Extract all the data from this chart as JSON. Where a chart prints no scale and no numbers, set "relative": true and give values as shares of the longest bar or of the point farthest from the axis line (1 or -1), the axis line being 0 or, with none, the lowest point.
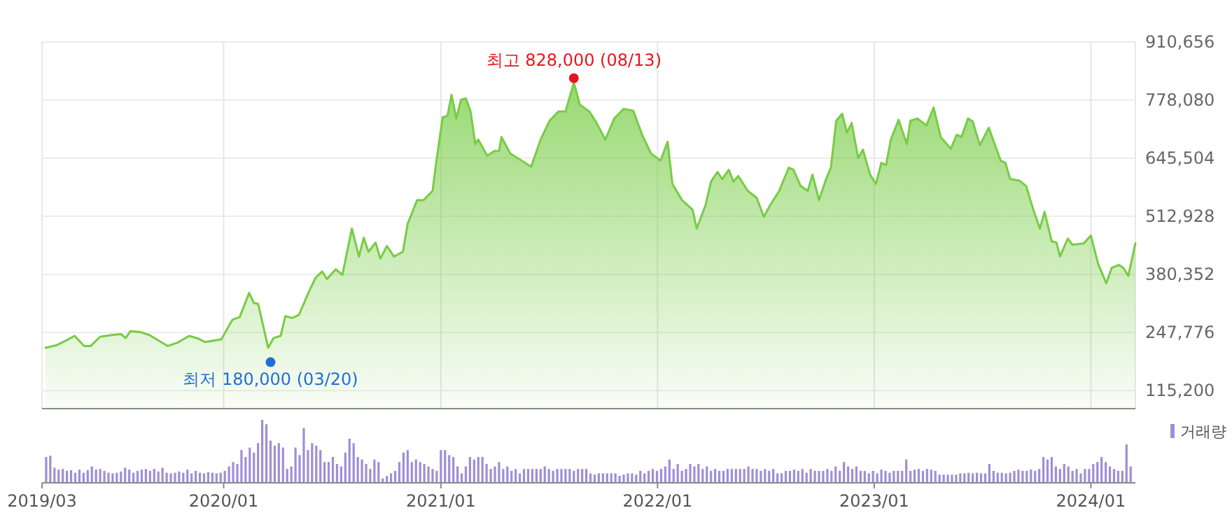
{
  "chart_data": [
    {
      "type": "area",
      "x": [
        "2019-03-07",
        "2019-03-26",
        "2019-04-10",
        "2019-04-25",
        "2019-05-11",
        "2019-05-22",
        "2019-06-07",
        "2019-06-27",
        "2019-07-12",
        "2019-07-20",
        "2019-07-28",
        "2019-08-13",
        "2019-08-29",
        "2019-09-14",
        "2019-09-29",
        "2019-10-16",
        "2019-11-04",
        "2019-11-19",
        "2019-12-01",
        "2019-12-28",
        "2020-01-16",
        "2020-01-28",
        "2020-02-13",
        "2020-02-21",
        "2020-02-28",
        "2020-03-02",
        "2020-03-16",
        "2020-03-25",
        "2020-04-06",
        "2020-04-14",
        "2020-04-26",
        "2020-05-07",
        "2020-05-22",
        "2020-06-04",
        "2020-06-15",
        "2020-06-23",
        "2020-07-08",
        "2020-07-19",
        "2020-08-04",
        "2020-08-16",
        "2020-08-24",
        "2020-09-01",
        "2020-09-13",
        "2020-09-21",
        "2020-10-02",
        "2020-10-14",
        "2020-10-29",
        "2020-11-06",
        "2020-11-22",
        "2020-12-03",
        "2020-12-18",
        "2020-12-24",
        "2021-01-04",
        "2021-01-12",
        "2021-01-19",
        "2021-01-27",
        "2021-02-04",
        "2021-02-12",
        "2021-02-20",
        "2021-02-28",
        "2021-03-05",
        "2021-03-20",
        "2021-04-01",
        "2021-04-09",
        "2021-04-13",
        "2021-04-28",
        "2021-05-17",
        "2021-06-02",
        "2021-06-18",
        "2021-07-03",
        "2021-07-18",
        "2021-07-30",
        "2021-08-13",
        "2021-08-23",
        "2021-09-08",
        "2021-09-19",
        "2021-10-05",
        "2021-10-20",
        "2021-11-05",
        "2021-11-21",
        "2021-12-06",
        "2021-12-21",
        "2022-01-06",
        "2022-01-18",
        "2022-01-26",
        "2022-02-11",
        "2022-03-01",
        "2022-03-08",
        "2022-03-23",
        "2022-04-01",
        "2022-04-12",
        "2022-04-20",
        "2022-05-01",
        "2022-05-09",
        "2022-05-17",
        "2022-06-02",
        "2022-06-17",
        "2022-06-29",
        "2022-07-10",
        "2022-07-25",
        "2022-08-10",
        "2022-08-18",
        "2022-08-30",
        "2022-09-11",
        "2022-09-19",
        "2022-09-30",
        "2022-10-12",
        "2022-10-20",
        "2022-10-29",
        "2022-11-08",
        "2022-11-16",
        "2022-11-24",
        "2022-12-05",
        "2022-12-13",
        "2022-12-25",
        "2023-01-04",
        "2023-01-13",
        "2023-01-21",
        "2023-01-29",
        "2023-02-11",
        "2023-02-25",
        "2023-03-03",
        "2023-03-15",
        "2023-03-30",
        "2023-04-11",
        "2023-04-23",
        "2023-05-10",
        "2023-05-20",
        "2023-05-28",
        "2023-06-08",
        "2023-06-16",
        "2023-06-28",
        "2023-07-13",
        "2023-08-02",
        "2023-08-10",
        "2023-08-18",
        "2023-09-03",
        "2023-09-14",
        "2023-09-26",
        "2023-10-07",
        "2023-10-15",
        "2023-10-27",
        "2023-11-04",
        "2023-11-10",
        "2023-11-23",
        "2023-12-01",
        "2023-12-20",
        "2024-01-01",
        "2024-01-13",
        "2024-01-27",
        "2024-02-05",
        "2024-02-17",
        "2024-02-25",
        "2024-03-04",
        "2024-03-16"
      ],
      "series": [
        {
          "color": "#77cc44",
          "values": [
            213000,
            219000,
            229000,
            240000,
            217000,
            217000,
            238000,
            242000,
            244000,
            235000,
            251000,
            249000,
            242000,
            229000,
            217000,
            225000,
            240000,
            234000,
            226000,
            232000,
            277000,
            283000,
            338000,
            315000,
            313000,
            296000,
            213000,
            235000,
            240000,
            285000,
            281000,
            288000,
            336000,
            373000,
            387000,
            370000,
            392000,
            379000,
            485000,
            421000,
            464000,
            432000,
            453000,
            416000,
            445000,
            421000,
            432000,
            496000,
            550000,
            550000,
            571000,
            635000,
            739000,
            742000,
            790000,
            736000,
            779000,
            782000,
            752000,
            678000,
            688000,
            651000,
            662000,
            662000,
            694000,
            656000,
            640000,
            626000,
            688000,
            731000,
            752000,
            752000,
            818000,
            768000,
            752000,
            729000,
            688000,
            736000,
            758000,
            754000,
            699000,
            656000,
            640000,
            683000,
            587000,
            550000,
            528000,
            485000,
            539000,
            592000,
            614000,
            598000,
            619000,
            592000,
            605000,
            571000,
            555000,
            512000,
            539000,
            571000,
            624000,
            619000,
            582000,
            571000,
            608000,
            550000,
            598000,
            624000,
            731000,
            747000,
            704000,
            726000,
            646000,
            665000,
            608000,
            587000,
            635000,
            630000,
            688000,
            733000,
            678000,
            731000,
            736000,
            720000,
            761000,
            694000,
            667000,
            699000,
            694000,
            736000,
            729000,
            675000,
            715000,
            640000,
            635000,
            598000,
            594000,
            582000,
            528000,
            485000,
            523000,
            456000,
            453000,
            421000,
            462000,
            448000,
            451000,
            469000,
            405000,
            360000,
            395000,
            402000,
            395000,
            377000,
            451000
          ]
        },
        {
          "type": "scatter",
          "x": [
            "2021-08-13",
            "2020-03-20"
          ],
          "colors": [
            "#e8141c",
            "#1f6fd6"
          ],
          "values": [
            828000,
            180000
          ]
        }
      ],
      "xlim": [
        "2019-03-01",
        "2024-03-16"
      ],
      "xticks": [
        {
          "value": "2020-01",
          "label": null
        },
        {
          "value": "2021-01",
          "label": null
        },
        {
          "value": "2022-01",
          "label": null
        },
        {
          "value": "2023-01",
          "label": null
        },
        {
          "value": "2024-01",
          "label": null
        }
      ],
      "ylim": [
        74000,
        910656
      ],
      "yticks": [
        {
          "value": 115200,
          "label": "115,200"
        },
        {
          "value": 247776,
          "label": "247,776"
        },
        {
          "value": 380352,
          "label": "380,352"
        },
        {
          "value": 512928,
          "label": "512,928"
        },
        {
          "value": 645504,
          "label": "645,504"
        },
        {
          "value": 778080,
          "label": "778,080"
        },
        {
          "value": 910656,
          "label": "910,656"
        }
      ],
      "grid": true,
      "tick_labels": "y",
      "annotations": [
        {
          "text": "최고 828,000 (08/13)",
          "x": "2021-08-13",
          "y": 828000
        },
        {
          "text": "최저 180,000 (03/20)",
          "x": "2020-03-20",
          "y": 180000
        }
      ]
    },
    {
      "type": "bar",
      "relative": true,
      "x": [
        "2019-03-08",
        "2019-03-15",
        "2019-03-22",
        "2019-03-29",
        "2019-04-05",
        "2019-04-12",
        "2019-04-19",
        "2019-04-26",
        "2019-05-03",
        "2019-05-10",
        "2019-05-17",
        "2019-05-24",
        "2019-05-31",
        "2019-06-07",
        "2019-06-14",
        "2019-06-21",
        "2019-06-28",
        "2019-07-05",
        "2019-07-12",
        "2019-07-19",
        "2019-07-26",
        "2019-08-02",
        "2019-08-09",
        "2019-08-16",
        "2019-08-23",
        "2019-08-30",
        "2019-09-06",
        "2019-09-13",
        "2019-09-20",
        "2019-09-27",
        "2019-10-04",
        "2019-10-11",
        "2019-10-18",
        "2019-10-25",
        "2019-11-01",
        "2019-11-08",
        "2019-11-15",
        "2019-11-22",
        "2019-11-29",
        "2019-12-06",
        "2019-12-13",
        "2019-12-20",
        "2019-12-27",
        "2020-01-03",
        "2020-01-10",
        "2020-01-17",
        "2020-01-24",
        "2020-01-31",
        "2020-02-07",
        "2020-02-14",
        "2020-02-21",
        "2020-02-28",
        "2020-03-06",
        "2020-03-13",
        "2020-03-20",
        "2020-03-27",
        "2020-04-03",
        "2020-04-10",
        "2020-04-17",
        "2020-04-24",
        "2020-05-01",
        "2020-05-08",
        "2020-05-15",
        "2020-05-22",
        "2020-05-29",
        "2020-06-05",
        "2020-06-12",
        "2020-06-19",
        "2020-06-26",
        "2020-07-03",
        "2020-07-10",
        "2020-07-17",
        "2020-07-24",
        "2020-07-31",
        "2020-08-07",
        "2020-08-14",
        "2020-08-21",
        "2020-08-28",
        "2020-09-04",
        "2020-09-11",
        "2020-09-18",
        "2020-09-25",
        "2020-10-02",
        "2020-10-09",
        "2020-10-16",
        "2020-10-23",
        "2020-10-30",
        "2020-11-06",
        "2020-11-13",
        "2020-11-20",
        "2020-11-27",
        "2020-12-04",
        "2020-12-11",
        "2020-12-18",
        "2020-12-25",
        "2021-01-01",
        "2021-01-08",
        "2021-01-15",
        "2021-01-22",
        "2021-01-29",
        "2021-02-05",
        "2021-02-12",
        "2021-02-19",
        "2021-02-26",
        "2021-03-05",
        "2021-03-12",
        "2021-03-19",
        "2021-03-26",
        "2021-04-02",
        "2021-04-09",
        "2021-04-16",
        "2021-04-23",
        "2021-04-30",
        "2021-05-07",
        "2021-05-14",
        "2021-05-21",
        "2021-05-28",
        "2021-06-04",
        "2021-06-11",
        "2021-06-18",
        "2021-06-25",
        "2021-07-02",
        "2021-07-09",
        "2021-07-16",
        "2021-07-23",
        "2021-07-30",
        "2021-08-06",
        "2021-08-13",
        "2021-08-20",
        "2021-08-27",
        "2021-09-03",
        "2021-09-10",
        "2021-09-17",
        "2021-09-24",
        "2021-10-01",
        "2021-10-08",
        "2021-10-15",
        "2021-10-22",
        "2021-10-29",
        "2021-11-05",
        "2021-11-12",
        "2021-11-19",
        "2021-11-26",
        "2021-12-03",
        "2021-12-10",
        "2021-12-17",
        "2021-12-24",
        "2021-12-31",
        "2022-01-07",
        "2022-01-14",
        "2022-01-21",
        "2022-01-28",
        "2022-02-04",
        "2022-02-11",
        "2022-02-18",
        "2022-02-25",
        "2022-03-04",
        "2022-03-11",
        "2022-03-18",
        "2022-03-25",
        "2022-04-01",
        "2022-04-08",
        "2022-04-15",
        "2022-04-22",
        "2022-04-29",
        "2022-05-06",
        "2022-05-13",
        "2022-05-20",
        "2022-05-27",
        "2022-06-03",
        "2022-06-10",
        "2022-06-17",
        "2022-06-24",
        "2022-07-01",
        "2022-07-08",
        "2022-07-15",
        "2022-07-22",
        "2022-07-29",
        "2022-08-05",
        "2022-08-12",
        "2022-08-19",
        "2022-08-26",
        "2022-09-02",
        "2022-09-09",
        "2022-09-16",
        "2022-09-23",
        "2022-09-30",
        "2022-10-07",
        "2022-10-14",
        "2022-10-21",
        "2022-10-28",
        "2022-11-04",
        "2022-11-11",
        "2022-11-18",
        "2022-11-25",
        "2022-12-02",
        "2022-12-09",
        "2022-12-16",
        "2022-12-23",
        "2022-12-30",
        "2023-01-06",
        "2023-01-13",
        "2023-01-20",
        "2023-01-27",
        "2023-02-03",
        "2023-02-10",
        "2023-02-17",
        "2023-02-24",
        "2023-03-03",
        "2023-03-10",
        "2023-03-17",
        "2023-03-24",
        "2023-03-31",
        "2023-04-07",
        "2023-04-14",
        "2023-04-21",
        "2023-04-28",
        "2023-05-05",
        "2023-05-12",
        "2023-05-19",
        "2023-05-26",
        "2023-06-02",
        "2023-06-09",
        "2023-06-16",
        "2023-06-23",
        "2023-06-30",
        "2023-07-07",
        "2023-07-14",
        "2023-07-21",
        "2023-07-28",
        "2023-08-04",
        "2023-08-11",
        "2023-08-18",
        "2023-08-25",
        "2023-09-01",
        "2023-09-08",
        "2023-09-15",
        "2023-09-22",
        "2023-09-29",
        "2023-10-06",
        "2023-10-13",
        "2023-10-20",
        "2023-10-27",
        "2023-11-03",
        "2023-11-10",
        "2023-11-17",
        "2023-11-24",
        "2023-12-01",
        "2023-12-08",
        "2023-12-15",
        "2023-12-22",
        "2023-12-29",
        "2024-01-05",
        "2024-01-12",
        "2024-01-19",
        "2024-01-26",
        "2024-02-02",
        "2024-02-09",
        "2024-02-16",
        "2024-02-23",
        "2024-03-01",
        "2024-03-08"
      ],
      "series": [
        {
          "name": "거래량",
          "color": "#9d8fd6",
          "values": [
            0.41,
            0.43,
            0.24,
            0.21,
            0.22,
            0.19,
            0.2,
            0.16,
            0.21,
            0.16,
            0.2,
            0.26,
            0.21,
            0.22,
            0.19,
            0.16,
            0.15,
            0.16,
            0.18,
            0.24,
            0.21,
            0.16,
            0.19,
            0.21,
            0.22,
            0.19,
            0.22,
            0.18,
            0.24,
            0.16,
            0.15,
            0.16,
            0.18,
            0.16,
            0.21,
            0.15,
            0.19,
            0.16,
            0.15,
            0.17,
            0.16,
            0.15,
            0.16,
            0.19,
            0.26,
            0.33,
            0.3,
            0.52,
            0.41,
            0.56,
            0.48,
            0.63,
            1,
            0.93,
            0.67,
            0.59,
            0.63,
            0.56,
            0.22,
            0.26,
            0.56,
            0.44,
            0.87,
            0.52,
            0.63,
            0.59,
            0.52,
            0.33,
            0.33,
            0.41,
            0.3,
            0.26,
            0.48,
            0.7,
            0.63,
            0.41,
            0.37,
            0.3,
            0.22,
            0.37,
            0.33,
            0.07,
            0.11,
            0.15,
            0.19,
            0.33,
            0.48,
            0.52,
            0.33,
            0.37,
            0.33,
            0.3,
            0.26,
            0.22,
            0.19,
            0.52,
            0.52,
            0.44,
            0.41,
            0.26,
            0.15,
            0.26,
            0.41,
            0.37,
            0.41,
            0.41,
            0.3,
            0.22,
            0.26,
            0.33,
            0.22,
            0.26,
            0.19,
            0.22,
            0.15,
            0.22,
            0.22,
            0.22,
            0.22,
            0.22,
            0.26,
            0.22,
            0.19,
            0.22,
            0.22,
            0.22,
            0.22,
            0.19,
            0.22,
            0.22,
            0.22,
            0.15,
            0.13,
            0.15,
            0.15,
            0.15,
            0.15,
            0.15,
            0.11,
            0.13,
            0.15,
            0.15,
            0.13,
            0.19,
            0.15,
            0.19,
            0.22,
            0.19,
            0.22,
            0.26,
            0.37,
            0.22,
            0.3,
            0.19,
            0.22,
            0.3,
            0.26,
            0.3,
            0.22,
            0.26,
            0.19,
            0.22,
            0.19,
            0.19,
            0.22,
            0.22,
            0.22,
            0.22,
            0.22,
            0.26,
            0.22,
            0.22,
            0.19,
            0.22,
            0.19,
            0.22,
            0.15,
            0.15,
            0.19,
            0.19,
            0.21,
            0.19,
            0.22,
            0.16,
            0.22,
            0.19,
            0.19,
            0.19,
            0.22,
            0.19,
            0.26,
            0.19,
            0.33,
            0.26,
            0.22,
            0.26,
            0.19,
            0.19,
            0.15,
            0.19,
            0.15,
            0.21,
            0.19,
            0.16,
            0.19,
            0.19,
            0.19,
            0.37,
            0.19,
            0.21,
            0.22,
            0.19,
            0.22,
            0.21,
            0.19,
            0.13,
            0.13,
            0.13,
            0.13,
            0.13,
            0.15,
            0.15,
            0.16,
            0.15,
            0.16,
            0.15,
            0.15,
            0.3,
            0.19,
            0.16,
            0.16,
            0.15,
            0.16,
            0.19,
            0.21,
            0.19,
            0.19,
            0.21,
            0.19,
            0.22,
            0.41,
            0.37,
            0.41,
            0.26,
            0.22,
            0.3,
            0.26,
            0.19,
            0.22,
            0.15,
            0.22,
            0.22,
            0.3,
            0.33,
            0.41,
            0.33,
            0.26,
            0.22,
            0.19,
            0.19,
            0.61,
            0.26
          ]
        }
      ],
      "xlim": [
        "2019-03-01",
        "2024-03-16"
      ],
      "xticks": [
        {
          "value": "2019-03",
          "label": "2019/03"
        },
        {
          "value": "2020-01",
          "label": "2020/01"
        },
        {
          "value": "2021-01",
          "label": "2021/01"
        },
        {
          "value": "2022-01",
          "label": "2022/01"
        },
        {
          "value": "2023-01",
          "label": "2023/01"
        },
        {
          "value": "2024-01",
          "label": "2024/01"
        }
      ],
      "tick_labels": "x",
      "legend": "top right"
    }
  ]
}
